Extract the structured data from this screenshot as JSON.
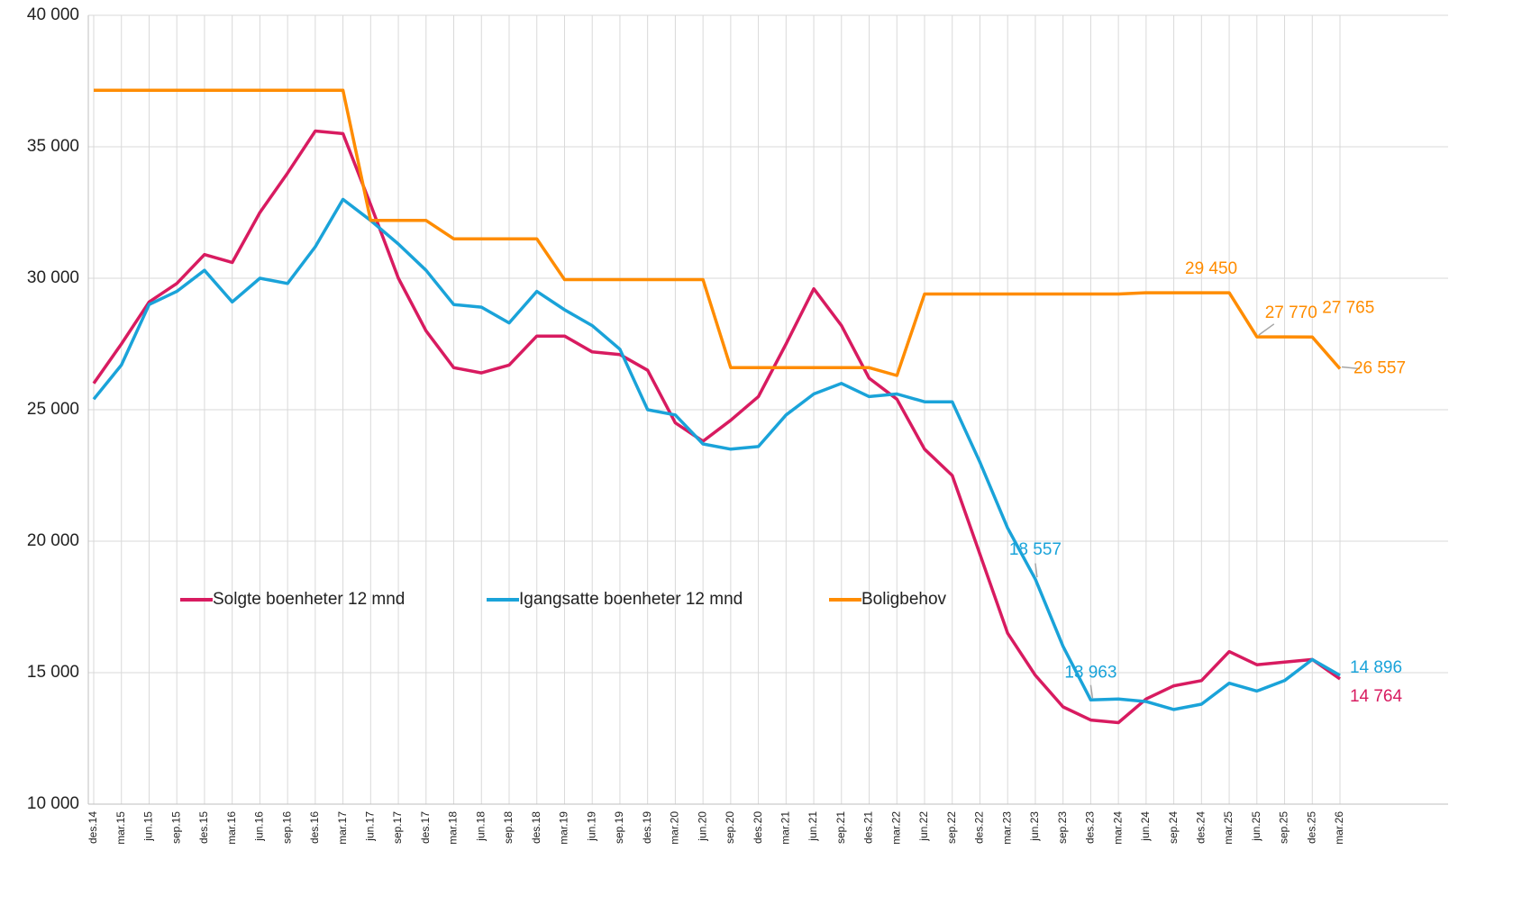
{
  "chart_data": {
    "type": "line",
    "categories": [
      "des.14",
      "mar.15",
      "jun.15",
      "sep.15",
      "des.15",
      "mar.16",
      "jun.16",
      "sep.16",
      "des.16",
      "mar.17",
      "jun.17",
      "sep.17",
      "des.17",
      "mar.18",
      "jun.18",
      "sep.18",
      "des.18",
      "mar.19",
      "jun.19",
      "sep.19",
      "des.19",
      "mar.20",
      "jun.20",
      "sep.20",
      "des.20",
      "mar.21",
      "jun.21",
      "sep.21",
      "des.21",
      "mar.22",
      "jun.22",
      "sep.22",
      "des.22",
      "mar.23",
      "jun.23",
      "sep.23",
      "des.23",
      "mar.24",
      "jun.24",
      "sep.24",
      "des.24",
      "mar.25",
      "jun.25",
      "sep.25",
      "des.25",
      "mar.26"
    ],
    "series": [
      {
        "name": "Solgte boenheter 12 mnd",
        "color": "#d81b60",
        "values": [
          26000,
          27500,
          29100,
          29800,
          30900,
          30600,
          32500,
          34000,
          35600,
          35500,
          32800,
          30000,
          28000,
          26600,
          26400,
          26700,
          27800,
          27800,
          27200,
          27100,
          26500,
          24500,
          23800,
          24600,
          25500,
          27500,
          29600,
          28200,
          26200,
          25400,
          23500,
          22500,
          19500,
          16500,
          14900,
          13700,
          13200,
          13100,
          14000,
          14500,
          14700,
          15800,
          15300,
          15400,
          15500,
          14764
        ],
        "value_labels": [
          null,
          null,
          null,
          null,
          null,
          null,
          null,
          null,
          null,
          null,
          null,
          null,
          null,
          null,
          null,
          null,
          null,
          null,
          null,
          null,
          null,
          null,
          null,
          null,
          null,
          null,
          null,
          null,
          null,
          null,
          null,
          null,
          null,
          null,
          null,
          null,
          null,
          null,
          null,
          null,
          null,
          null,
          null,
          null,
          null,
          "14 764"
        ]
      },
      {
        "name": "Igangsatte boenheter 12 mnd",
        "color": "#1aa3d9",
        "values": [
          25400,
          26700,
          29000,
          29500,
          30300,
          29100,
          30000,
          29800,
          31200,
          33000,
          32200,
          31300,
          30300,
          29000,
          28900,
          28300,
          29500,
          28800,
          28200,
          27300,
          25000,
          24800,
          23700,
          23500,
          23600,
          24800,
          25600,
          26000,
          25500,
          25600,
          25300,
          25300,
          23000,
          20500,
          18557,
          16000,
          13963,
          14000,
          13900,
          13600,
          13800,
          14600,
          14300,
          14700,
          15500,
          14896
        ],
        "value_labels": [
          null,
          null,
          null,
          null,
          null,
          null,
          null,
          null,
          null,
          null,
          null,
          null,
          null,
          null,
          null,
          null,
          null,
          null,
          null,
          null,
          null,
          null,
          null,
          null,
          null,
          null,
          null,
          null,
          null,
          null,
          null,
          null,
          null,
          null,
          "18 557",
          null,
          "13 963",
          null,
          null,
          null,
          null,
          null,
          null,
          null,
          null,
          "14 896"
        ]
      },
      {
        "name": "Boligbehov",
        "color": "#ff8c00",
        "values": [
          37150,
          37150,
          37150,
          37150,
          37150,
          37150,
          37150,
          37150,
          37150,
          37150,
          32200,
          32200,
          32200,
          31500,
          31500,
          31500,
          31500,
          29950,
          29950,
          29950,
          29950,
          29950,
          29950,
          26600,
          26600,
          26600,
          26600,
          26600,
          26600,
          26300,
          29400,
          29400,
          29400,
          29400,
          29400,
          29400,
          29400,
          29400,
          29450,
          29450,
          29450,
          29450,
          27770,
          27770,
          27765,
          26557
        ],
        "value_labels": [
          null,
          null,
          null,
          null,
          null,
          null,
          null,
          null,
          null,
          null,
          null,
          null,
          null,
          null,
          null,
          null,
          null,
          null,
          null,
          null,
          null,
          null,
          null,
          null,
          null,
          null,
          null,
          null,
          null,
          null,
          null,
          null,
          null,
          null,
          null,
          null,
          null,
          null,
          null,
          null,
          null,
          "29 450",
          "27 770",
          null,
          "27 765",
          "26 557"
        ]
      }
    ],
    "ylim": [
      10000,
      40000
    ],
    "yticks": [
      {
        "value": 10000,
        "label": "10 000"
      },
      {
        "value": 15000,
        "label": "15 000"
      },
      {
        "value": 20000,
        "label": "20 000"
      },
      {
        "value": 25000,
        "label": "25 000"
      },
      {
        "value": 30000,
        "label": "30 000"
      },
      {
        "value": 35000,
        "label": "35 000"
      },
      {
        "value": 40000,
        "label": "40 000"
      }
    ],
    "grid": true
  }
}
